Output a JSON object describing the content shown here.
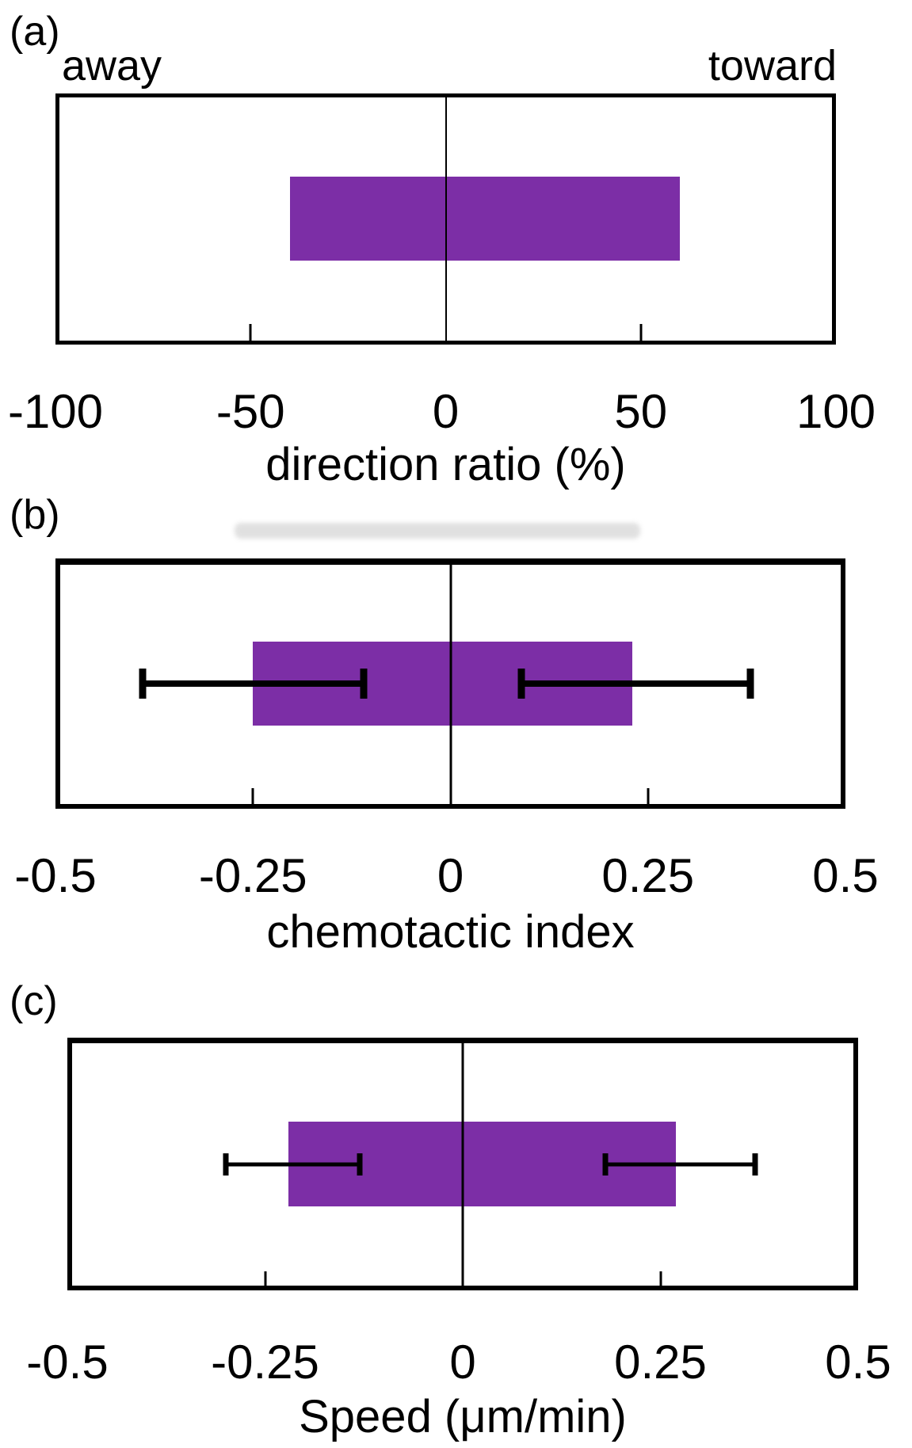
{
  "figure": {
    "background": "#ffffff",
    "bar_color": "#7C2EA6",
    "axis_color": "#000000",
    "ghost_artifact": "faint erased-text smudge above panel (b)"
  },
  "chart_data": [
    {
      "type": "bar",
      "panel_label": "(a)",
      "orientation": "horizontal",
      "title": "",
      "xlabel": "direction ratio (%)",
      "xlim": [
        -100,
        100
      ],
      "xticks": [
        -100,
        -50,
        0,
        50,
        100
      ],
      "xtick_labels": [
        "-100",
        "-50",
        "0",
        "50",
        "100"
      ],
      "inner_ticks": [
        -50,
        50
      ],
      "zero_line": true,
      "grid": false,
      "annotations": {
        "left": "away",
        "right": "toward"
      },
      "bar": {
        "from": -40,
        "to": 60
      },
      "series": [
        {
          "name": "away",
          "value": -40
        },
        {
          "name": "toward",
          "value": 60
        }
      ],
      "bar_color": "#7C2EA6"
    },
    {
      "type": "bar",
      "panel_label": "(b)",
      "orientation": "horizontal",
      "title": "",
      "xlabel": "chemotactic index",
      "xlim": [
        -0.5,
        0.5
      ],
      "xticks": [
        -0.5,
        -0.25,
        0,
        0.25,
        0.5
      ],
      "xtick_labels": [
        "-0.5",
        "-0.25",
        "0",
        "0.25",
        "0.5"
      ],
      "inner_ticks": [
        -0.25,
        0.25
      ],
      "zero_line": true,
      "grid": false,
      "bar": {
        "from": -0.25,
        "to": 0.23
      },
      "series": [
        {
          "name": "away",
          "value": -0.25,
          "whisker": [
            -0.39,
            -0.11
          ]
        },
        {
          "name": "toward",
          "value": 0.23,
          "whisker": [
            0.09,
            0.38
          ]
        }
      ],
      "bar_color": "#7C2EA6"
    },
    {
      "type": "bar",
      "panel_label": "(c)",
      "orientation": "horizontal",
      "title": "",
      "xlabel": "Speed (μm/min)",
      "xlim": [
        -0.5,
        0.5
      ],
      "xticks": [
        -0.5,
        -0.25,
        0,
        0.25,
        0.5
      ],
      "xtick_labels": [
        "-0.5",
        "-0.25",
        "0",
        "0.25",
        "0.5"
      ],
      "inner_ticks": [
        -0.25,
        0.25
      ],
      "zero_line": true,
      "grid": false,
      "bar": {
        "from": -0.22,
        "to": 0.27
      },
      "series": [
        {
          "name": "away",
          "value": -0.22,
          "whisker": [
            -0.3,
            -0.13
          ]
        },
        {
          "name": "toward",
          "value": 0.27,
          "whisker": [
            0.18,
            0.37
          ]
        }
      ],
      "bar_color": "#7C2EA6"
    }
  ]
}
